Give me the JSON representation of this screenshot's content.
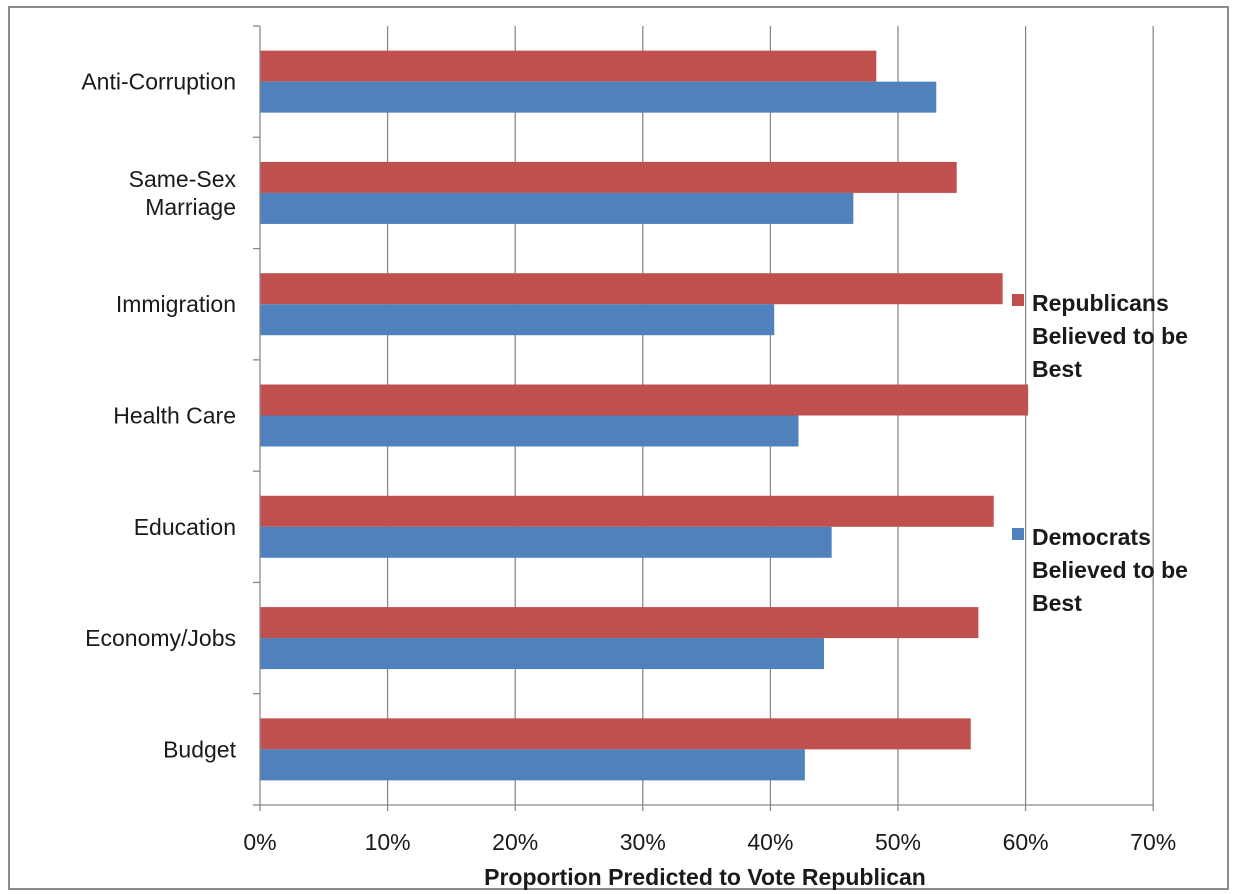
{
  "chart_data": {
    "type": "bar",
    "orientation": "horizontal",
    "title": "",
    "xlabel": "Proportion Predicted to Vote Republican",
    "ylabel": "",
    "xlim": [
      0,
      70
    ],
    "x_tick_labels": [
      "0%",
      "10%",
      "20%",
      "30%",
      "40%",
      "50%",
      "60%",
      "70%"
    ],
    "grid": true,
    "legend_position": "right",
    "categories": [
      [
        "Anti-Corruption"
      ],
      [
        "Same-Sex",
        "Marriage"
      ],
      [
        "Immigration"
      ],
      [
        "Health Care"
      ],
      [
        "Education"
      ],
      [
        "Economy/Jobs"
      ],
      [
        "Budget"
      ]
    ],
    "series": [
      {
        "name": [
          "Republicans",
          "Believed to be",
          "Best"
        ],
        "color": "#c0504d",
        "values": [
          48.3,
          54.6,
          58.2,
          60.2,
          57.5,
          56.3,
          55.7
        ]
      },
      {
        "name": [
          "Democrats",
          "Believed to be",
          "Best"
        ],
        "color": "#4f81bd",
        "values": [
          53.0,
          46.5,
          40.3,
          42.2,
          44.8,
          44.2,
          42.7
        ]
      }
    ]
  }
}
